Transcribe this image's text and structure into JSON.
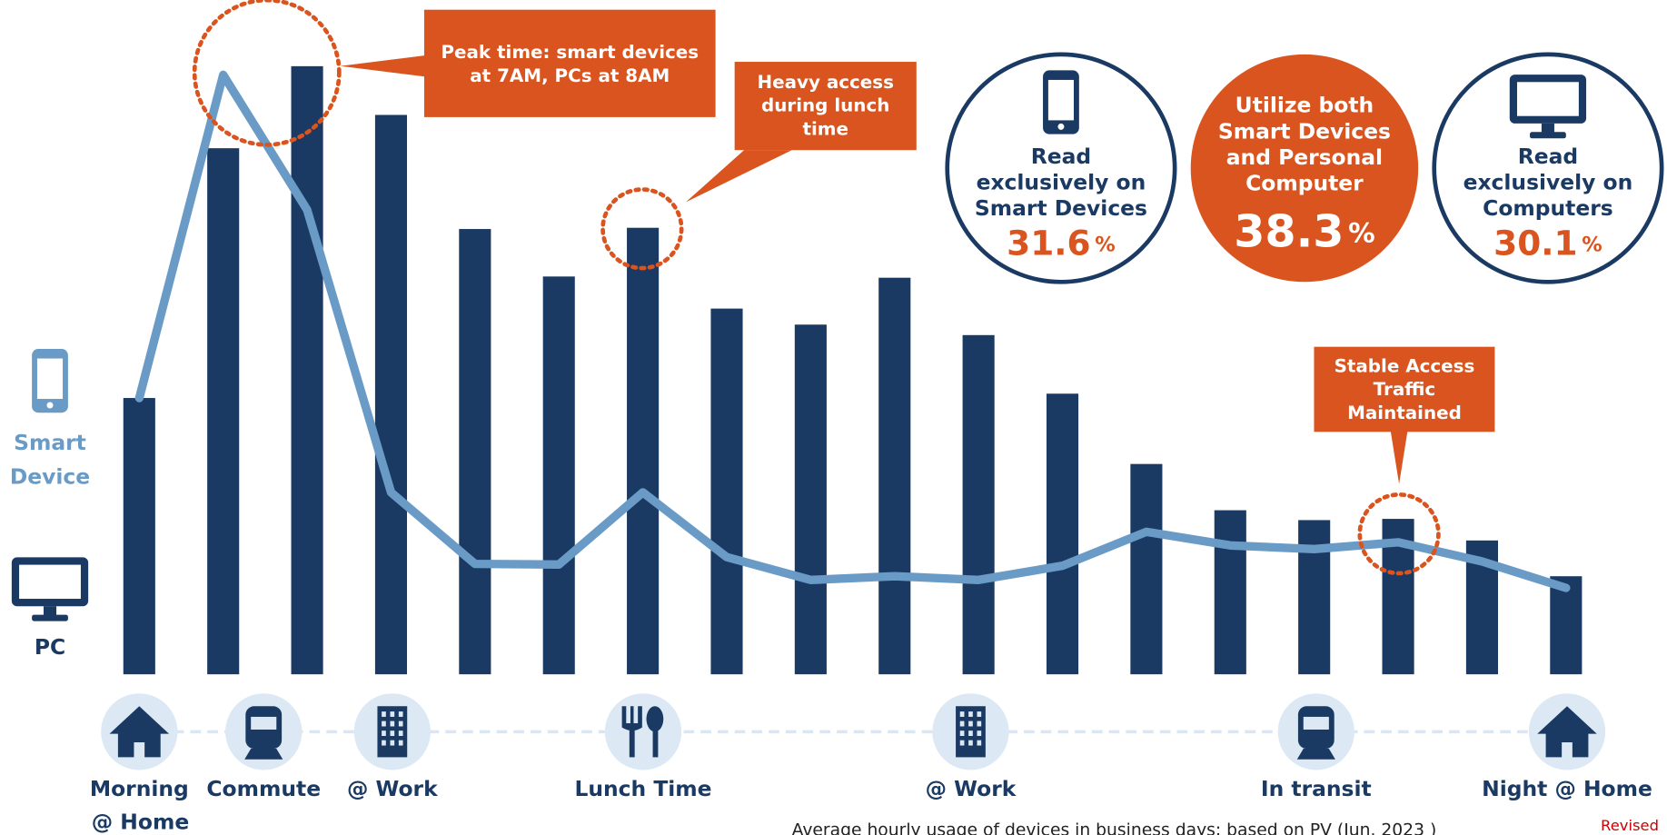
{
  "chart_data": {
    "type": "bar_line",
    "categories": [
      null,
      null,
      null,
      null,
      null,
      null,
      null,
      null,
      null,
      null,
      null,
      null,
      null,
      null,
      null,
      null,
      null,
      null
    ],
    "ylim": [
      0,
      100
    ],
    "series": [
      {
        "name": "PC",
        "type": "bar",
        "color": "#1a3a63",
        "values": [
          44.8,
          85.3,
          98.6,
          90.7,
          72.2,
          64.5,
          72.4,
          59.3,
          56.7,
          64.3,
          55.0,
          45.5,
          34.1,
          26.6,
          25.0,
          25.2,
          21.7,
          15.9
        ]
      },
      {
        "name": "Smart Device",
        "type": "line",
        "color": "#6a9bc6",
        "values": [
          44.8,
          97.2,
          75.3,
          29.5,
          17.9,
          17.8,
          29.5,
          19.0,
          15.3,
          15.9,
          15.3,
          17.6,
          23.1,
          20.9,
          20.3,
          21.4,
          18.3,
          14.0
        ]
      }
    ],
    "annotations": [
      {
        "lines": [
          "Peak time: smart devices",
          "at 7AM, PCs at 8AM"
        ]
      },
      {
        "lines": [
          "Heavy access",
          "during lunch",
          "time"
        ]
      },
      {
        "lines": [
          "Stable Access",
          "Traffic",
          "Maintained"
        ]
      }
    ],
    "stats": [
      {
        "lines": [
          "Read",
          "exclusively on",
          "Smart Devices"
        ],
        "value": 31.6,
        "unit": "%"
      },
      {
        "lines": [
          "Utilize both",
          "Smart Devices",
          "and Personal",
          "Computer"
        ],
        "value": 38.3,
        "unit": "%"
      },
      {
        "lines": [
          "Read",
          "exclusively on",
          "Computers"
        ],
        "value": 30.1,
        "unit": "%"
      }
    ],
    "timeline": [
      {
        "lines": [
          "Morning",
          "@ Home"
        ]
      },
      {
        "lines": [
          "Commute"
        ]
      },
      {
        "lines": [
          "@ Work"
        ]
      },
      {
        "lines": [
          "Lunch Time"
        ]
      },
      {
        "lines": [
          "@ Work"
        ]
      },
      {
        "lines": [
          "In transit"
        ]
      },
      {
        "lines": [
          "Night @ Home"
        ]
      }
    ],
    "footnote": "Average hourly usage of devices in business days; based on PV (Jun. 2023 )",
    "revised": "Revised"
  }
}
